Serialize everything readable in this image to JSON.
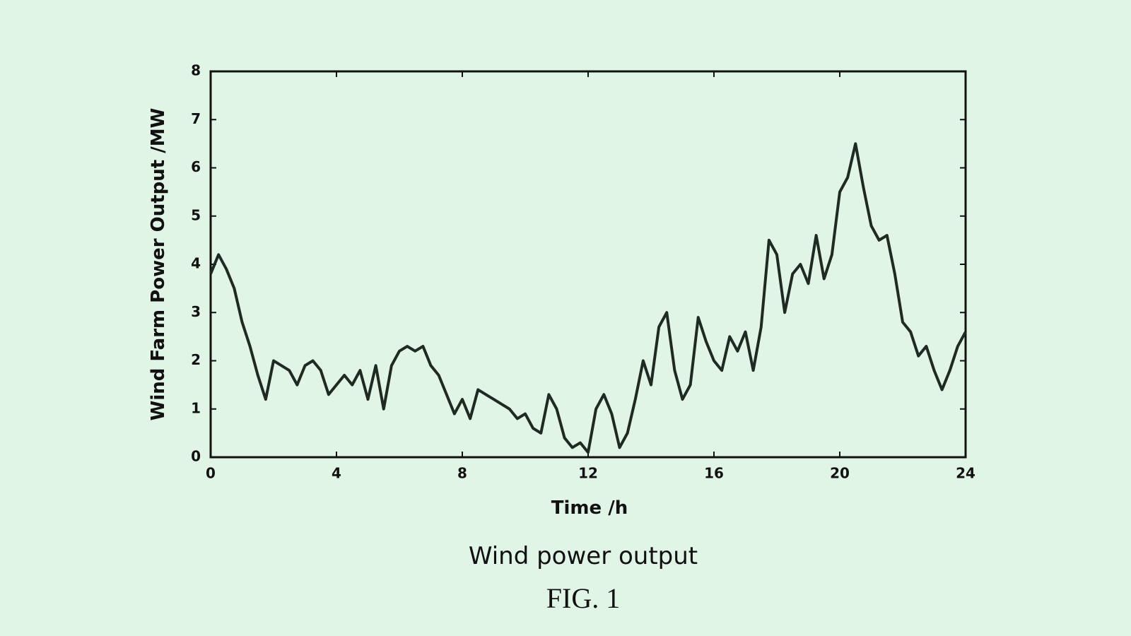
{
  "chart_data": {
    "type": "line",
    "xlabel": "Time /h",
    "ylabel": "Wind Farm Power Output /MW",
    "caption": "Wind power output",
    "figure_label": "FIG. 1",
    "x": [
      0,
      0.25,
      0.5,
      0.75,
      1,
      1.25,
      1.5,
      1.75,
      2,
      2.25,
      2.5,
      2.75,
      3,
      3.25,
      3.5,
      3.75,
      4,
      4.25,
      4.5,
      4.75,
      5,
      5.25,
      5.5,
      5.75,
      6,
      6.25,
      6.5,
      6.75,
      7,
      7.25,
      7.5,
      7.75,
      8,
      8.25,
      8.5,
      8.75,
      9,
      9.25,
      9.5,
      9.75,
      10,
      10.25,
      10.5,
      10.75,
      11,
      11.25,
      11.5,
      11.75,
      12,
      12.25,
      12.5,
      12.75,
      13,
      13.25,
      13.5,
      13.75,
      14,
      14.25,
      14.5,
      14.75,
      15,
      15.25,
      15.5,
      15.75,
      16,
      16.25,
      16.5,
      16.75,
      17,
      17.25,
      17.5,
      17.75,
      18,
      18.25,
      18.5,
      18.75,
      19,
      19.25,
      19.5,
      19.75,
      20,
      20.25,
      20.5,
      20.75,
      21,
      21.25,
      21.5,
      21.75,
      22,
      22.25,
      22.5,
      22.75,
      23,
      23.25,
      23.5,
      23.75,
      24
    ],
    "series": [
      {
        "name": "Wind power",
        "color": "#1e2a22",
        "values": [
          3.8,
          4.2,
          3.9,
          3.5,
          2.8,
          2.3,
          1.7,
          1.2,
          2.0,
          1.9,
          1.8,
          1.5,
          1.9,
          2.0,
          1.8,
          1.3,
          1.5,
          1.7,
          1.5,
          1.8,
          1.2,
          1.9,
          1.0,
          1.9,
          2.2,
          2.3,
          2.2,
          2.3,
          1.9,
          1.7,
          1.3,
          0.9,
          1.2,
          0.8,
          1.4,
          1.3,
          1.2,
          1.1,
          1.0,
          0.8,
          0.9,
          0.6,
          0.5,
          1.3,
          1.0,
          0.4,
          0.2,
          0.3,
          0.1,
          1.0,
          1.3,
          0.9,
          0.2,
          0.5,
          1.2,
          2.0,
          1.5,
          2.7,
          3.0,
          1.8,
          1.2,
          1.5,
          2.9,
          2.4,
          2.0,
          1.8,
          2.5,
          2.2,
          2.6,
          1.8,
          2.7,
          4.5,
          4.2,
          3.0,
          3.8,
          4.0,
          3.6,
          4.6,
          3.7,
          4.2,
          5.5,
          5.8,
          6.5,
          5.6,
          4.8,
          4.5,
          4.6,
          3.8,
          2.8,
          2.6,
          2.1,
          2.3,
          1.8,
          1.4,
          1.8,
          2.3,
          2.6
        ]
      }
    ],
    "xlim": [
      0,
      24
    ],
    "xticks": [
      0,
      4,
      8,
      12,
      16,
      20,
      24
    ],
    "ylim": [
      0,
      8
    ],
    "yticks": [
      0,
      1,
      2,
      3,
      4,
      5,
      6,
      7,
      8
    ]
  }
}
